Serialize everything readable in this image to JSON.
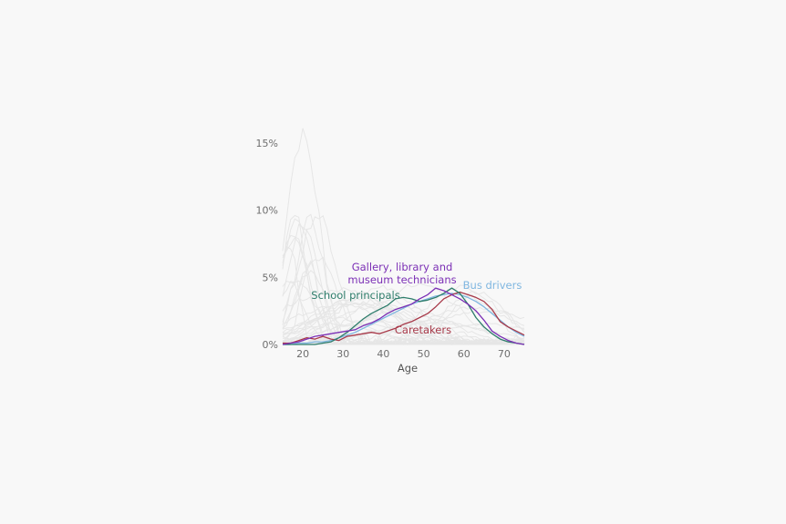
{
  "chart_data": {
    "type": "line",
    "xlabel": "Age",
    "ylabel": "",
    "xlim": [
      15,
      75
    ],
    "ylim": [
      0,
      16
    ],
    "x_ticks": [
      "20",
      "30",
      "40",
      "50",
      "60",
      "70"
    ],
    "y_ticks": [
      "0%",
      "5%",
      "10%",
      "15%"
    ],
    "colors": {
      "background_lines": "#e6e6e6",
      "gallery": "#7b2fb5",
      "caretakers": "#a83a4a",
      "principals": "#2e7d6b",
      "bus": "#7fb6e0"
    },
    "background_series_note_count": 40,
    "series": [
      {
        "name": "Gallery, library and museum technicians",
        "name_lines": [
          "Gallery, library and",
          "museum technicians"
        ],
        "color": "#7b2fb5",
        "x": [
          15,
          17,
          19,
          21,
          23,
          25,
          27,
          29,
          31,
          33,
          35,
          37,
          39,
          41,
          43,
          45,
          47,
          49,
          51,
          53,
          55,
          57,
          59,
          61,
          63,
          65,
          67,
          69,
          71,
          73,
          75
        ],
        "y": [
          0.0,
          0.1,
          0.2,
          0.4,
          0.6,
          0.7,
          0.8,
          0.9,
          1.0,
          1.1,
          1.4,
          1.6,
          1.9,
          2.3,
          2.6,
          2.8,
          3.0,
          3.4,
          3.7,
          4.2,
          4.0,
          3.7,
          3.4,
          3.0,
          2.5,
          1.8,
          1.0,
          0.6,
          0.3,
          0.1,
          0.0
        ]
      },
      {
        "name": "Caretakers",
        "name_lines": [
          "Caretakers"
        ],
        "color": "#a83a4a",
        "x": [
          15,
          17,
          19,
          21,
          23,
          25,
          27,
          29,
          31,
          33,
          35,
          37,
          39,
          41,
          43,
          45,
          47,
          49,
          51,
          53,
          55,
          57,
          59,
          61,
          63,
          65,
          67,
          69,
          71,
          73,
          75
        ],
        "y": [
          0.1,
          0.1,
          0.3,
          0.5,
          0.4,
          0.6,
          0.4,
          0.3,
          0.6,
          0.7,
          0.8,
          0.9,
          0.8,
          1.0,
          1.2,
          1.5,
          1.7,
          2.0,
          2.3,
          2.8,
          3.4,
          3.7,
          3.9,
          3.7,
          3.5,
          3.2,
          2.6,
          1.7,
          1.3,
          1.0,
          0.7
        ]
      },
      {
        "name": "School principals",
        "name_lines": [
          "School principals"
        ],
        "color": "#2e7d6b",
        "x": [
          15,
          17,
          19,
          21,
          23,
          25,
          27,
          29,
          31,
          33,
          35,
          37,
          39,
          41,
          43,
          45,
          47,
          49,
          51,
          53,
          55,
          57,
          59,
          61,
          63,
          65,
          67,
          69,
          71,
          73,
          75
        ],
        "y": [
          0.0,
          0.0,
          0.0,
          0.0,
          0.0,
          0.1,
          0.2,
          0.5,
          0.9,
          1.4,
          1.9,
          2.3,
          2.6,
          2.9,
          3.4,
          3.5,
          3.4,
          3.2,
          3.3,
          3.5,
          3.8,
          4.2,
          3.8,
          3.0,
          2.0,
          1.3,
          0.8,
          0.4,
          0.2,
          0.1,
          0.0
        ]
      },
      {
        "name": "Bus drivers",
        "name_lines": [
          "Bus drivers"
        ],
        "color": "#7fb6e0",
        "x": [
          15,
          17,
          19,
          21,
          23,
          25,
          27,
          29,
          31,
          33,
          35,
          37,
          39,
          41,
          43,
          45,
          47,
          49,
          51,
          53,
          55,
          57,
          59,
          61,
          63,
          65,
          67,
          69,
          71,
          73,
          75
        ],
        "y": [
          0.0,
          0.0,
          0.1,
          0.1,
          0.2,
          0.2,
          0.3,
          0.5,
          0.7,
          0.9,
          1.2,
          1.5,
          1.8,
          2.1,
          2.4,
          2.7,
          3.0,
          3.2,
          3.4,
          3.6,
          3.7,
          3.8,
          3.7,
          3.5,
          3.2,
          2.8,
          2.3,
          1.8,
          1.3,
          0.9,
          0.6
        ]
      }
    ]
  }
}
